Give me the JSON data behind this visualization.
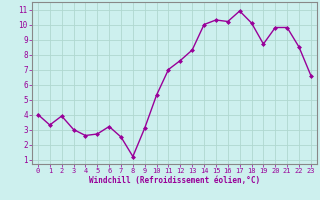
{
  "x": [
    0,
    1,
    2,
    3,
    4,
    5,
    6,
    7,
    8,
    9,
    10,
    11,
    12,
    13,
    14,
    15,
    16,
    17,
    18,
    19,
    20,
    21,
    22,
    23
  ],
  "y": [
    4.0,
    3.3,
    3.9,
    3.0,
    2.6,
    2.7,
    3.2,
    2.5,
    1.2,
    3.1,
    5.3,
    7.0,
    7.6,
    8.3,
    10.0,
    10.3,
    10.2,
    10.9,
    10.1,
    8.7,
    9.8,
    9.8,
    8.5,
    6.6
  ],
  "line_color": "#990099",
  "marker": "D",
  "markersize": 2,
  "linewidth": 1.0,
  "bg_color": "#cdf0ee",
  "grid_color": "#b0d8d0",
  "xlabel": "Windchill (Refroidissement éolien,°C)",
  "xlabel_color": "#990099",
  "tick_color": "#990099",
  "yticks": [
    1,
    2,
    3,
    4,
    5,
    6,
    7,
    8,
    9,
    10,
    11
  ],
  "xticks": [
    0,
    1,
    2,
    3,
    4,
    5,
    6,
    7,
    8,
    9,
    10,
    11,
    12,
    13,
    14,
    15,
    16,
    17,
    18,
    19,
    20,
    21,
    22,
    23
  ],
  "xlim": [
    -0.5,
    23.5
  ],
  "ylim": [
    0.7,
    11.5
  ],
  "spine_color": "#888888"
}
